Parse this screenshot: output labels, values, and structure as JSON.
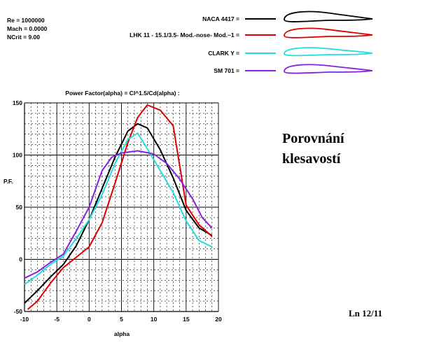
{
  "params": {
    "re": "Re = 1000000",
    "mach": "Mach = 0.0000",
    "ncrit": "NCrit = 9.00"
  },
  "chart_data": {
    "type": "line",
    "title": "Power Factor(alpha) = Cl^1.5/Cd(alpha) :",
    "xlabel": "alpha",
    "ylabel": "P.F.",
    "xlim": [
      -10,
      20
    ],
    "ylim": [
      -50,
      150
    ],
    "x_ticks": [
      -10,
      -5,
      0,
      5,
      10,
      15,
      20
    ],
    "y_ticks": [
      -50,
      0,
      50,
      100,
      150
    ],
    "x_tick_labels": [
      "-10",
      "-5",
      "0",
      "5",
      "10",
      "15",
      "20"
    ],
    "y_tick_labels": [
      "-50",
      "0",
      "50",
      "100",
      "150"
    ],
    "grid": true,
    "legend_position": "top-right",
    "series": [
      {
        "name": "NACA 4417 =",
        "color": "#000000",
        "x": [
          -10,
          -8,
          -6,
          -4,
          -2,
          0,
          2,
          4,
          6,
          7.5,
          9,
          11,
          13,
          15,
          17,
          19
        ],
        "y": [
          -42,
          -30,
          -17,
          -5,
          13,
          38,
          68,
          98,
          123,
          130,
          126,
          105,
          78,
          47,
          30,
          23
        ]
      },
      {
        "name": "LHK 11 - 15.1/3.5- Mod.-nose- Mod.~1 =",
        "color": "#dd0000",
        "x": [
          -9.5,
          -8,
          -6,
          -4,
          -2,
          0,
          2,
          4,
          6,
          7.5,
          9,
          11,
          13,
          15,
          17,
          19
        ],
        "y": [
          -48,
          -40,
          -23,
          -8,
          2,
          12,
          35,
          73,
          112,
          136,
          148,
          143,
          128,
          52,
          33,
          22
        ]
      },
      {
        "name": "CLARK Y =",
        "color": "#22dddd",
        "x": [
          -10,
          -8,
          -6,
          -4,
          -2,
          0,
          2,
          4,
          6,
          7.5,
          9,
          11,
          13,
          15,
          17,
          19
        ],
        "y": [
          -24,
          -15,
          -5,
          3,
          20,
          38,
          62,
          92,
          115,
          121,
          106,
          85,
          64,
          37,
          18,
          12
        ]
      },
      {
        "name": "SM 701 =",
        "color": "#8822dd",
        "x": [
          -10,
          -8,
          -6,
          -4,
          -2,
          0,
          2,
          3.5,
          5,
          7.5,
          10,
          12,
          14,
          16,
          17.5,
          19
        ],
        "y": [
          -18,
          -12,
          -3,
          5,
          27,
          50,
          85,
          98,
          102,
          104,
          101,
          92,
          77,
          58,
          40,
          30
        ]
      }
    ]
  },
  "annotation": {
    "line1": "Porovnání",
    "line2": "klesavostí",
    "footer": "Ln 12/11"
  }
}
